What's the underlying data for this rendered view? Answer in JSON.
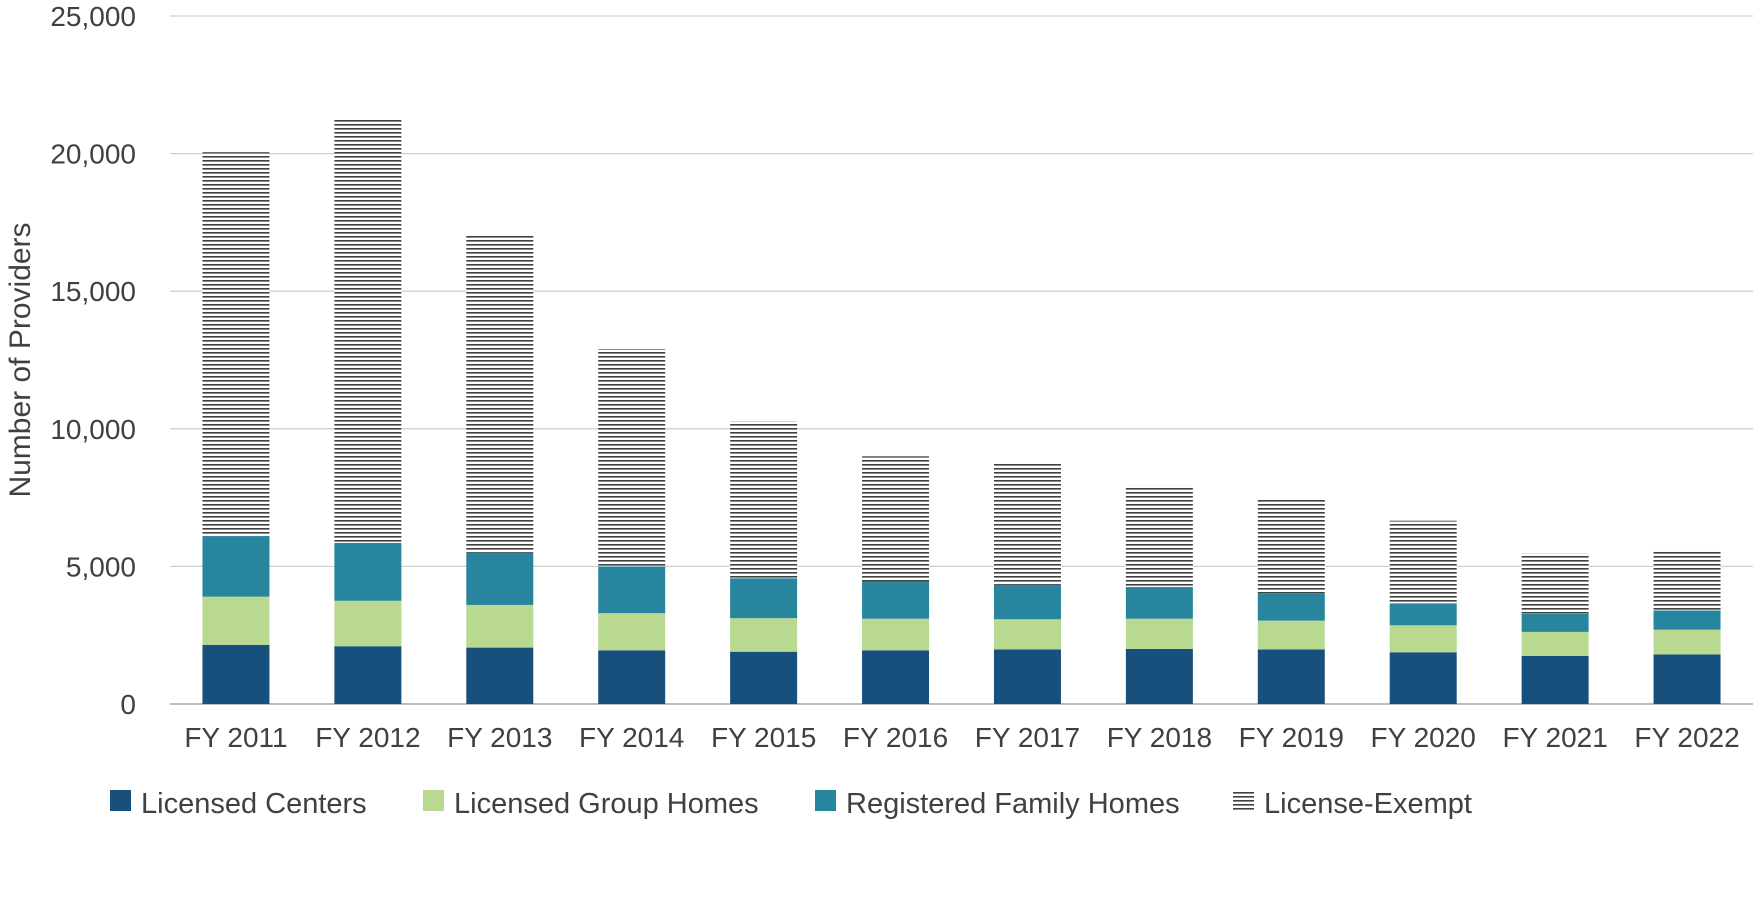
{
  "chart_data": {
    "type": "bar",
    "stacked": true,
    "title": "",
    "xlabel": "",
    "ylabel": "Number of Providers",
    "ylim": [
      0,
      25000
    ],
    "yticks": [
      0,
      5000,
      10000,
      15000,
      20000,
      25000
    ],
    "ytick_labels": [
      "0",
      "5,000",
      "10,000",
      "15,000",
      "20,000",
      "25,000"
    ],
    "grid": true,
    "legend_position": "bottom",
    "categories": [
      "FY 2011",
      "FY 2012",
      "FY 2013",
      "FY 2014",
      "FY 2015",
      "FY 2016",
      "FY 2017",
      "FY 2018",
      "FY 2019",
      "FY 2020",
      "FY 2021",
      "FY 2022"
    ],
    "series": [
      {
        "name": "Licensed Centers",
        "color": "#18507d",
        "pattern": "solid",
        "values": [
          2150,
          2100,
          2050,
          1950,
          1900,
          1950,
          1980,
          2000,
          1980,
          1880,
          1750,
          1800
        ]
      },
      {
        "name": "Licensed Group Homes",
        "color": "#b8d98f",
        "pattern": "solid",
        "values": [
          1750,
          1650,
          1550,
          1350,
          1220,
          1150,
          1100,
          1100,
          1050,
          980,
          870,
          900
        ]
      },
      {
        "name": "Registered Family Homes",
        "color": "#27869e",
        "pattern": "solid",
        "values": [
          2200,
          2100,
          1900,
          1700,
          1450,
          1350,
          1250,
          1150,
          1000,
          800,
          650,
          700
        ]
      },
      {
        "name": "License-Exempt",
        "color": "#404040",
        "pattern": "horizontal-lines",
        "values": [
          13950,
          15400,
          11550,
          7900,
          5700,
          4550,
          4420,
          3680,
          3420,
          3000,
          2200,
          2200
        ]
      }
    ]
  }
}
